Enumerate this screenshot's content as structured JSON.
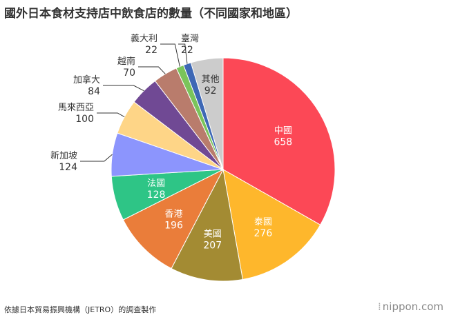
{
  "title": "國外日本食材支持店中飲食店的數量（不同國家和地區）",
  "source": "依據日本貿易振興機構（JETRO）的調查製作",
  "logo": "nippon.com",
  "chart_data": {
    "type": "pie",
    "title": "國外日本食材支持店中飲食店的數量（不同國家和地區）",
    "slices": [
      {
        "label": "中國",
        "value": 658,
        "color": "#fc4856"
      },
      {
        "label": "泰國",
        "value": 276,
        "color": "#feb72c"
      },
      {
        "label": "美國",
        "value": 207,
        "color": "#a38b33"
      },
      {
        "label": "香港",
        "value": 196,
        "color": "#ea7d3a"
      },
      {
        "label": "法國",
        "value": 128,
        "color": "#2ec586"
      },
      {
        "label": "新加坡",
        "value": 124,
        "color": "#8c95fd"
      },
      {
        "label": "馬來西亞",
        "value": 100,
        "color": "#fed587"
      },
      {
        "label": "加拿大",
        "value": 84,
        "color": "#704994"
      },
      {
        "label": "越南",
        "value": 70,
        "color": "#b97c6c"
      },
      {
        "label": "義大利",
        "value": 22,
        "color": "#7ac45b"
      },
      {
        "label": "臺灣",
        "value": 22,
        "color": "#3e68b5"
      },
      {
        "label": "其他",
        "value": 92,
        "color": "#cccccc"
      }
    ]
  }
}
